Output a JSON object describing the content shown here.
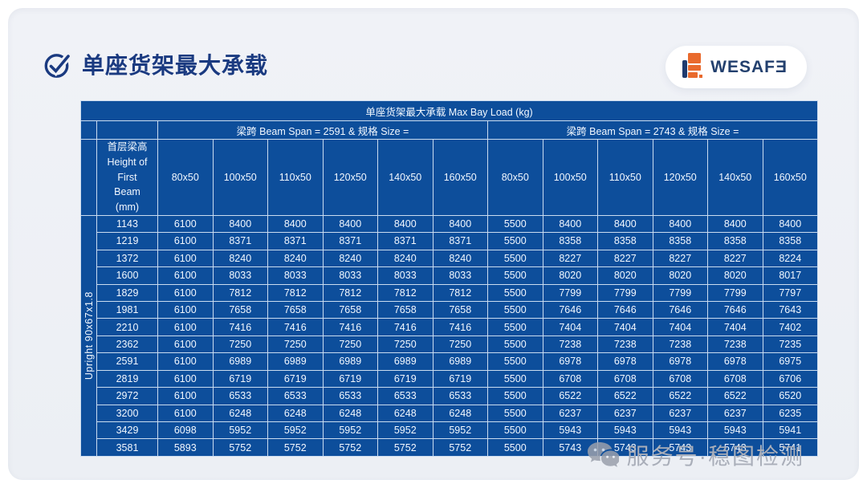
{
  "page": {
    "title": "单座货架最大承载",
    "logo_text": "WESAFƎ",
    "watermark_text": "服务号·稳图检测"
  },
  "colors": {
    "table_blue": "#0d4e9b",
    "grid_line": "#cadcf0",
    "title_navy": "#1a3a80",
    "logo_orange": "#e96a2d",
    "logo_navy": "#1e3a6e",
    "watermark_gray": "#a9aeb9"
  },
  "table": {
    "title": "单座货架最大承载 Max Bay Load (kg)",
    "span_headers": [
      "梁跨 Beam Span = 2591  & 规格 Size =",
      "梁跨 Beam Span = 2743  & 规格 Size ="
    ],
    "height_header": "首层梁高\nHeight of\nFirst\nBeam\n(mm)",
    "upright_label": "Upright 90x67x1.8",
    "size_columns": [
      "80x50",
      "100x50",
      "110x50",
      "120x50",
      "140x50",
      "160x50"
    ],
    "rows": [
      {
        "height": "1143",
        "span2591": [
          "6100",
          "8400",
          "8400",
          "8400",
          "8400",
          "8400"
        ],
        "span2743": [
          "5500",
          "8400",
          "8400",
          "8400",
          "8400",
          "8400"
        ]
      },
      {
        "height": "1219",
        "span2591": [
          "6100",
          "8371",
          "8371",
          "8371",
          "8371",
          "8371"
        ],
        "span2743": [
          "5500",
          "8358",
          "8358",
          "8358",
          "8358",
          "8358"
        ]
      },
      {
        "height": "1372",
        "span2591": [
          "6100",
          "8240",
          "8240",
          "8240",
          "8240",
          "8240"
        ],
        "span2743": [
          "5500",
          "8227",
          "8227",
          "8227",
          "8227",
          "8224"
        ]
      },
      {
        "height": "1600",
        "span2591": [
          "6100",
          "8033",
          "8033",
          "8033",
          "8033",
          "8033"
        ],
        "span2743": [
          "5500",
          "8020",
          "8020",
          "8020",
          "8020",
          "8017"
        ]
      },
      {
        "height": "1829",
        "span2591": [
          "6100",
          "7812",
          "7812",
          "7812",
          "7812",
          "7812"
        ],
        "span2743": [
          "5500",
          "7799",
          "7799",
          "7799",
          "7799",
          "7797"
        ]
      },
      {
        "height": "1981",
        "span2591": [
          "6100",
          "7658",
          "7658",
          "7658",
          "7658",
          "7658"
        ],
        "span2743": [
          "5500",
          "7646",
          "7646",
          "7646",
          "7646",
          "7643"
        ]
      },
      {
        "height": "2210",
        "span2591": [
          "6100",
          "7416",
          "7416",
          "7416",
          "7416",
          "7416"
        ],
        "span2743": [
          "5500",
          "7404",
          "7404",
          "7404",
          "7404",
          "7402"
        ]
      },
      {
        "height": "2362",
        "span2591": [
          "6100",
          "7250",
          "7250",
          "7250",
          "7250",
          "7250"
        ],
        "span2743": [
          "5500",
          "7238",
          "7238",
          "7238",
          "7238",
          "7235"
        ]
      },
      {
        "height": "2591",
        "span2591": [
          "6100",
          "6989",
          "6989",
          "6989",
          "6989",
          "6989"
        ],
        "span2743": [
          "5500",
          "6978",
          "6978",
          "6978",
          "6978",
          "6975"
        ]
      },
      {
        "height": "2819",
        "span2591": [
          "6100",
          "6719",
          "6719",
          "6719",
          "6719",
          "6719"
        ],
        "span2743": [
          "5500",
          "6708",
          "6708",
          "6708",
          "6708",
          "6706"
        ]
      },
      {
        "height": "2972",
        "span2591": [
          "6100",
          "6533",
          "6533",
          "6533",
          "6533",
          "6533"
        ],
        "span2743": [
          "5500",
          "6522",
          "6522",
          "6522",
          "6522",
          "6520"
        ]
      },
      {
        "height": "3200",
        "span2591": [
          "6100",
          "6248",
          "6248",
          "6248",
          "6248",
          "6248"
        ],
        "span2743": [
          "5500",
          "6237",
          "6237",
          "6237",
          "6237",
          "6235"
        ]
      },
      {
        "height": "3429",
        "span2591": [
          "6098",
          "5952",
          "5952",
          "5952",
          "5952",
          "5952"
        ],
        "span2743": [
          "5500",
          "5943",
          "5943",
          "5943",
          "5943",
          "5941"
        ]
      },
      {
        "height": "3581",
        "span2591": [
          "5893",
          "5752",
          "5752",
          "5752",
          "5752",
          "5752"
        ],
        "span2743": [
          "5500",
          "5743",
          "5743",
          "5743",
          "5743",
          "5741"
        ]
      }
    ]
  }
}
